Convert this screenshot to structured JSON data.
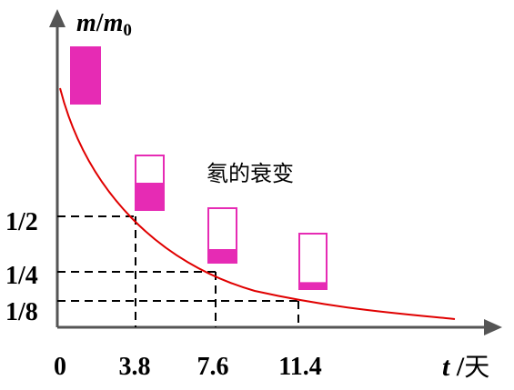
{
  "y_axis_label": {
    "main": "m",
    "slash": "/",
    "sub_main": "m",
    "subscript": "0"
  },
  "x_axis_label": {
    "variable": "t",
    "slash": " /",
    "unit": "天"
  },
  "title": "氡的衰变",
  "x_ticks": [
    "0",
    "3.8",
    "7.6",
    "11.4"
  ],
  "y_ticks": [
    "1/2",
    "1/4",
    "1/8"
  ],
  "colors": {
    "curve": "#e00000",
    "sample": "#e62bb4",
    "axis": "#555555",
    "guide": "#000000"
  },
  "samples": [
    {
      "time": 0,
      "remaining_fraction": 1
    },
    {
      "time": 3.8,
      "remaining_fraction": 0.5
    },
    {
      "time": 7.6,
      "remaining_fraction": 0.25
    },
    {
      "time": 11.4,
      "remaining_fraction": 0.125
    }
  ]
}
